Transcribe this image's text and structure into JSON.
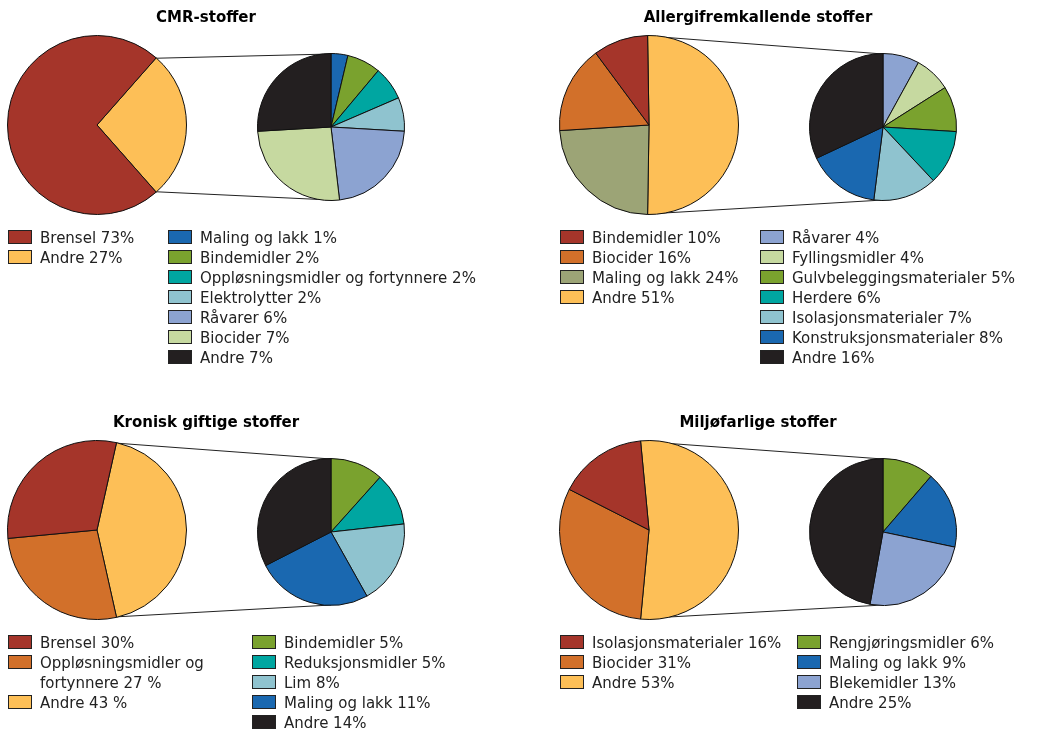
{
  "chart_data": [
    {
      "type": "pie",
      "title": "CMR-stoffer",
      "categories": [
        "Brensel",
        "Andre"
      ],
      "values": [
        73,
        27
      ],
      "colors": [
        "#a5352a",
        "#fdbf57"
      ],
      "value_labels": [
        "73%",
        "27%"
      ],
      "legend": "bottom"
    },
    {
      "type": "pie",
      "categories": [
        "Maling og lakk",
        "Bindemidler",
        "Oppløsningsmidler og fortynnere",
        "Elektrolytter",
        "Råvarer",
        "Biocider",
        "Andre"
      ],
      "values": [
        1,
        2,
        2,
        2,
        6,
        7,
        7
      ],
      "colors": [
        "#1a68b0",
        "#7aa22e",
        "#00a6a1",
        "#8fc3cf",
        "#8ca3d1",
        "#c6d9a0",
        "#231f20"
      ],
      "value_labels": [
        "1%",
        "2%",
        "2%",
        "2%",
        "6%",
        "7%",
        "7%"
      ],
      "legend": "bottom"
    },
    {
      "type": "pie",
      "title": "Allergifremkallende stoffer",
      "categories": [
        "Bindemidler",
        "Biocider",
        "Maling og lakk",
        "Andre"
      ],
      "values": [
        10,
        16,
        24,
        51
      ],
      "colors": [
        "#a5352a",
        "#d2702a",
        "#9ca476",
        "#fdbf57"
      ],
      "value_labels": [
        "10%",
        "16%",
        "24%",
        "51%"
      ],
      "legend": "bottom"
    },
    {
      "type": "pie",
      "categories": [
        "Råvarer",
        "Fyllingsmidler",
        "Gulvbeleggingsmaterialer",
        "Herdere",
        "Isolasjonsmaterialer",
        "Konstruksjonsmaterialer",
        "Andre"
      ],
      "values": [
        4,
        4,
        5,
        6,
        7,
        8,
        16
      ],
      "colors": [
        "#8ca3d1",
        "#c6d9a0",
        "#7aa22e",
        "#00a6a1",
        "#8fc3cf",
        "#1a68b0",
        "#231f20"
      ],
      "value_labels": [
        "4%",
        "4%",
        "5%",
        "6%",
        "7%",
        "8%",
        "16%"
      ],
      "legend": "bottom"
    },
    {
      "type": "pie",
      "title": "Kronisk giftige stoffer",
      "categories": [
        "Brensel",
        "Oppløsningsmidler og fortynnere",
        "Andre"
      ],
      "values": [
        30,
        27,
        43
      ],
      "colors": [
        "#a5352a",
        "#d2702a",
        "#fdbf57"
      ],
      "value_labels": [
        "30%",
        "27 %",
        "43 %"
      ],
      "legend": "bottom"
    },
    {
      "type": "pie",
      "categories": [
        "Bindemidler",
        "Reduksjonsmidler",
        "Lim",
        "Maling og lakk",
        "Andre"
      ],
      "values": [
        5,
        5,
        8,
        11,
        14
      ],
      "colors": [
        "#7aa22e",
        "#00a6a1",
        "#8fc3cf",
        "#1a68b0",
        "#231f20"
      ],
      "value_labels": [
        "5%",
        "5%",
        "8%",
        "11%",
        "14%"
      ],
      "legend": "bottom"
    },
    {
      "type": "pie",
      "title": "Miljøfarlige stoffer",
      "categories": [
        "Isolasjonsmaterialer",
        "Biocider",
        "Andre"
      ],
      "values": [
        16,
        31,
        53
      ],
      "colors": [
        "#a5352a",
        "#d2702a",
        "#fdbf57"
      ],
      "value_labels": [
        "16%",
        "31%",
        "53%"
      ],
      "legend": "bottom"
    },
    {
      "type": "pie",
      "categories": [
        "Rengjøringsmidler",
        "Maling og lakk",
        "Blekemidler",
        "Andre"
      ],
      "values": [
        6,
        9,
        13,
        25
      ],
      "colors": [
        "#7aa22e",
        "#1a68b0",
        "#8ca3d1",
        "#231f20"
      ],
      "value_labels": [
        "6%",
        "9%",
        "13%",
        "25%"
      ],
      "legend": "bottom"
    }
  ]
}
